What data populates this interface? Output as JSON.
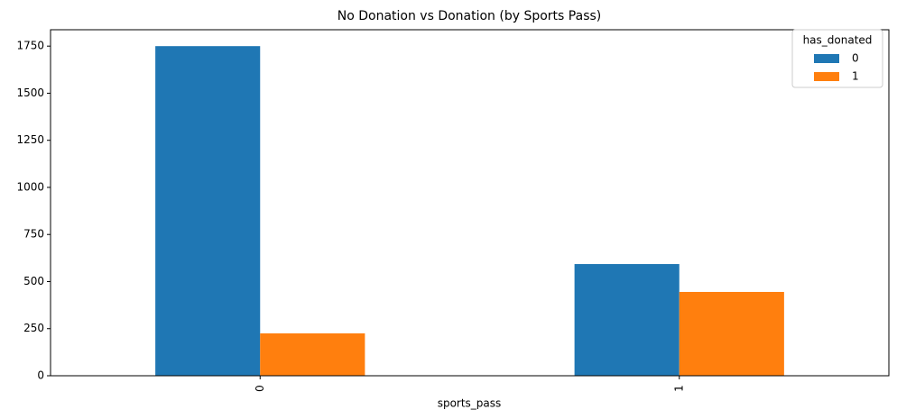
{
  "chart_data": {
    "type": "bar",
    "title": "No Donation vs Donation (by Sports Pass)",
    "x_label": "sports_pass",
    "categories": [
      "0",
      "1"
    ],
    "legend_title": "has_donated",
    "series": [
      {
        "name": "0",
        "color": "#1f77b4",
        "values": [
          1750,
          593
        ]
      },
      {
        "name": "1",
        "color": "#ff7f0e",
        "values": [
          225,
          445
        ]
      }
    ],
    "ylim": [
      0,
      1837
    ],
    "yticks": [
      0,
      250,
      500,
      750,
      1000,
      1250,
      1500,
      1750
    ],
    "grid": false,
    "legend": "upper right"
  }
}
